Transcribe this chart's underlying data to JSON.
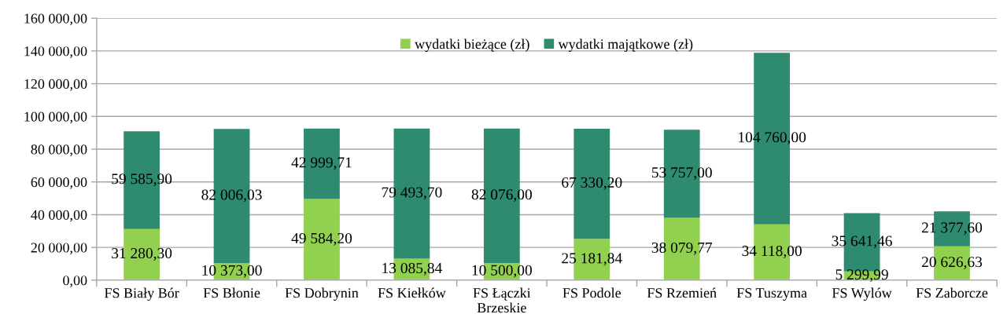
{
  "chart_data": {
    "type": "bar",
    "stacked": true,
    "categories": [
      "FS Biały Bór",
      "FS Błonie",
      "FS Dobrynin",
      "FS Kiełków",
      "FS Łączki\nBrzeskie",
      "FS Podole",
      "FS Rzemień",
      "FS Tuszyma",
      "FS Wylów",
      "FS Zaborcze"
    ],
    "series": [
      {
        "name": "wydatki bieżące (zł)",
        "color": "#92d050",
        "values": [
          31280.3,
          10373.0,
          49584.2,
          13085.84,
          10500.0,
          25181.84,
          38079.77,
          34118.0,
          5299.99,
          20626.63
        ],
        "value_labels": [
          "31 280,30",
          "10 373,00",
          "49 584,20",
          "13 085,84",
          "10 500,00",
          "25 181,84",
          "38 079,77",
          "34 118,00",
          "5 299,99",
          "20 626,63"
        ]
      },
      {
        "name": "wydatki majątkowe (zł)",
        "color": "#2f8b6f",
        "values": [
          59585.9,
          82006.03,
          42999.71,
          79493.7,
          82076.0,
          67330.2,
          53757.0,
          104760.0,
          35641.46,
          21377.6
        ],
        "value_labels": [
          "59 585,90",
          "82 006,03",
          "42 999,71",
          "79 493,70",
          "82 076,00",
          "67 330,20",
          "53 757,00",
          "104 760,00",
          "35 641,46",
          "21 377,60"
        ]
      }
    ],
    "ylim": [
      0,
      160000
    ],
    "yticks": [
      {
        "value": 0,
        "label": "0,00"
      },
      {
        "value": 20000,
        "label": "20 000,00"
      },
      {
        "value": 40000,
        "label": "40 000,00"
      },
      {
        "value": 60000,
        "label": "60 000,00"
      },
      {
        "value": 80000,
        "label": "80 000,00"
      },
      {
        "value": 100000,
        "label": "100 000,00"
      },
      {
        "value": 120000,
        "label": "120 000,00"
      },
      {
        "value": 140000,
        "label": "140 000,00"
      },
      {
        "value": 160000,
        "label": "160 000,00"
      }
    ],
    "grid": "y",
    "legend": "top"
  }
}
